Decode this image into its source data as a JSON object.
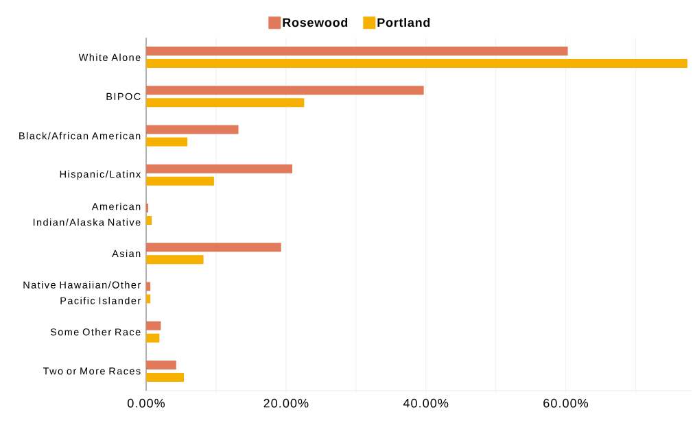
{
  "chart_data": {
    "type": "bar",
    "orientation": "horizontal",
    "categories": [
      "White Alone",
      "BIPOC",
      "Black/African American",
      "Hispanic/Latinx",
      "American Indian/Alaska Native",
      "Asian",
      "Native Hawaiian/Other Pacific Islander",
      "Some Other Race",
      "Two or More Races"
    ],
    "series": [
      {
        "name": "Rosewood",
        "color": "#e07a5a",
        "values": [
          60.3,
          39.7,
          13.2,
          20.9,
          0.3,
          19.3,
          0.6,
          2.1,
          4.3
        ]
      },
      {
        "name": "Portland",
        "color": "#f5b000",
        "values": [
          77.4,
          22.6,
          5.9,
          9.7,
          0.8,
          8.2,
          0.6,
          1.9,
          5.4
        ]
      }
    ],
    "xlim": [
      0,
      78
    ],
    "xticks": [
      {
        "value": 0,
        "label": "0.00%"
      },
      {
        "value": 10,
        "label": null
      },
      {
        "value": 20,
        "label": "20.00%"
      },
      {
        "value": 30,
        "label": null
      },
      {
        "value": 40,
        "label": "40.00%"
      },
      {
        "value": 50,
        "label": null
      },
      {
        "value": 60,
        "label": "60.00%"
      },
      {
        "value": 70,
        "label": null
      }
    ],
    "grid": "x",
    "legend": "top"
  }
}
